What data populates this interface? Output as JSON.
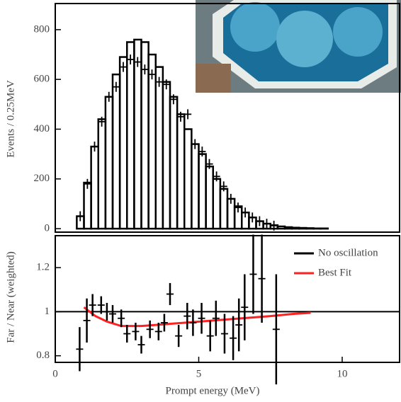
{
  "chart_data": [
    {
      "type": "histogram",
      "y_label": "Events / 0.25MeV",
      "color": "#000000",
      "bins": [
        0.75,
        1.0,
        1.25,
        1.5,
        1.75,
        2.0,
        2.25,
        2.5,
        2.75,
        3.0,
        3.25,
        3.5,
        3.75,
        4.0,
        4.25,
        4.5,
        4.75,
        5.0,
        5.25,
        5.5,
        5.75,
        6.0,
        6.25,
        6.5,
        6.75,
        7.0,
        7.25,
        7.5,
        7.75,
        8.0,
        8.25,
        8.5,
        8.75,
        9.0,
        9.25,
        9.5
      ],
      "values": [
        50,
        185,
        330,
        440,
        530,
        620,
        690,
        750,
        760,
        750,
        700,
        650,
        590,
        530,
        460,
        400,
        340,
        300,
        250,
        200,
        160,
        120,
        90,
        65,
        45,
        30,
        20,
        14,
        9,
        6,
        4,
        3,
        2,
        1,
        1
      ],
      "points": {
        "x": [
          0.87,
          1.12,
          1.37,
          1.62,
          1.87,
          2.12,
          2.37,
          2.62,
          2.87,
          3.12,
          3.37,
          3.62,
          3.87,
          4.12,
          4.37,
          4.62,
          4.87,
          5.12,
          5.37,
          5.62,
          5.87,
          6.12,
          6.37,
          6.62,
          6.87,
          7.12,
          7.37,
          7.62
        ],
        "values": [
          50,
          180,
          330,
          430,
          530,
          570,
          650,
          680,
          670,
          640,
          620,
          590,
          580,
          520,
          450,
          460,
          340,
          310,
          260,
          210,
          170,
          120,
          85,
          65,
          45,
          30,
          20,
          12
        ]
      },
      "xlim": [
        0,
        12
      ],
      "ylim": [
        -14,
        905
      ],
      "yticks": [
        0,
        200,
        400,
        600,
        800
      ]
    },
    {
      "type": "ratio",
      "x_label": "Prompt energy (MeV)",
      "y_label": "Far / Near (weighted)",
      "legend": "upper right",
      "xlim": [
        0,
        12
      ],
      "xticks": [
        0,
        5,
        10
      ],
      "ylim": [
        0.77,
        1.345
      ],
      "yticks": [
        0.8,
        1,
        1.2
      ],
      "series": [
        {
          "name": "No oscillation",
          "color": "#000000",
          "x": [
            0,
            12
          ],
          "values": [
            1,
            1
          ]
        },
        {
          "name": "Best Fit",
          "color": "#ff2020",
          "x": [
            1.0,
            1.4,
            1.8,
            2.3,
            3.0,
            3.5,
            4.5,
            5.5,
            6.5,
            7.5,
            8.3,
            8.9
          ],
          "values": [
            1.02,
            0.98,
            0.955,
            0.935,
            0.935,
            0.94,
            0.95,
            0.96,
            0.97,
            0.98,
            0.99,
            0.995
          ]
        }
      ],
      "points": {
        "x": [
          0.85,
          1.1,
          1.3,
          1.6,
          1.8,
          2.0,
          2.3,
          2.5,
          2.8,
          3.0,
          3.3,
          3.6,
          3.8,
          4.0,
          4.3,
          4.6,
          4.8,
          5.1,
          5.4,
          5.6,
          5.9,
          6.2,
          6.4,
          6.6,
          6.9,
          7.2,
          7.7
        ],
        "values": [
          0.83,
          0.96,
          1.03,
          1.03,
          1.0,
          0.99,
          0.97,
          0.9,
          0.91,
          0.85,
          0.92,
          0.91,
          0.95,
          1.08,
          0.89,
          0.98,
          0.95,
          0.97,
          0.89,
          0.97,
          0.9,
          0.88,
          0.94,
          1.02,
          1.17,
          1.15,
          0.92
        ],
        "errors": [
          0.1,
          0.1,
          0.05,
          0.04,
          0.04,
          0.04,
          0.04,
          0.04,
          0.04,
          0.04,
          0.04,
          0.04,
          0.04,
          0.05,
          0.05,
          0.06,
          0.06,
          0.07,
          0.07,
          0.08,
          0.09,
          0.1,
          0.12,
          0.15,
          0.18,
          0.2,
          0.25
        ]
      }
    }
  ]
}
